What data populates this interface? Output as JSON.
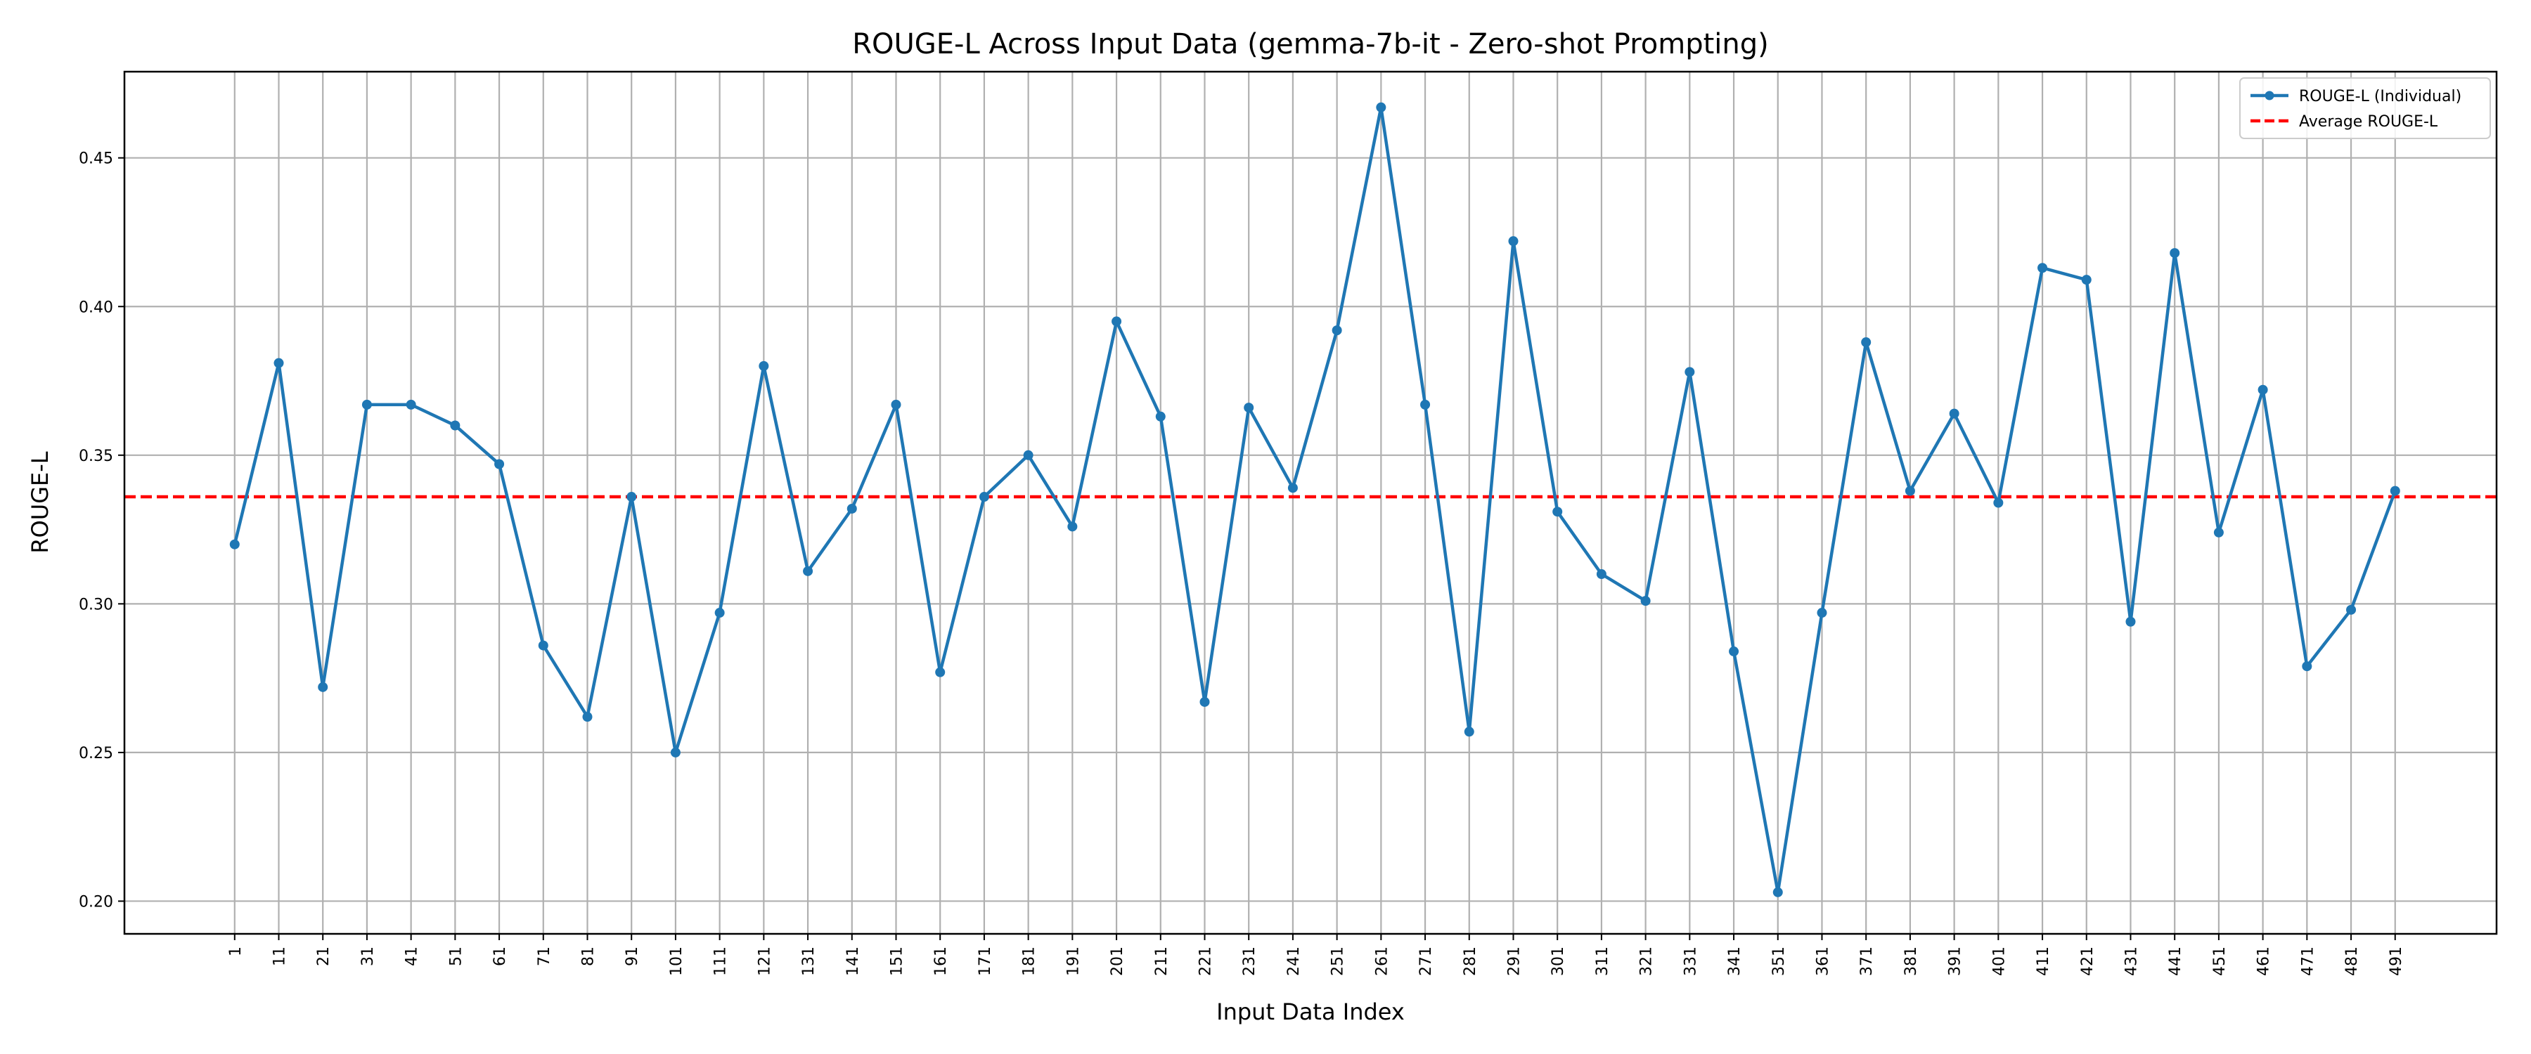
{
  "chart_data": {
    "type": "line",
    "title": "ROUGE-L Across Input Data (gemma-7b-it - Zero-shot Prompting)",
    "xlabel": "Input Data Index",
    "ylabel": "ROUGE-L",
    "x": [
      1,
      11,
      21,
      31,
      41,
      51,
      61,
      71,
      81,
      91,
      101,
      111,
      121,
      131,
      141,
      151,
      161,
      171,
      181,
      191,
      201,
      211,
      221,
      231,
      241,
      251,
      261,
      271,
      281,
      291,
      301,
      311,
      321,
      331,
      341,
      351,
      361,
      371,
      381,
      391,
      401,
      411,
      421,
      431,
      441,
      451,
      461,
      471,
      481,
      491
    ],
    "xtick_labels": [
      "1",
      "11",
      "21",
      "31",
      "41",
      "51",
      "61",
      "71",
      "81",
      "91",
      "101",
      "111",
      "121",
      "131",
      "141",
      "151",
      "161",
      "171",
      "181",
      "191",
      "201",
      "211",
      "221",
      "231",
      "241",
      "251",
      "261",
      "271",
      "281",
      "291",
      "301",
      "311",
      "321",
      "331",
      "341",
      "351",
      "361",
      "371",
      "381",
      "391",
      "401",
      "411",
      "421",
      "431",
      "441",
      "451",
      "461",
      "471",
      "481",
      "491"
    ],
    "xlim": [
      -24,
      514
    ],
    "ylim": [
      0.189,
      0.479
    ],
    "yticks": [
      0.2,
      0.25,
      0.3,
      0.35,
      0.4,
      0.45
    ],
    "ytick_labels": [
      "0.20",
      "0.25",
      "0.30",
      "0.35",
      "0.40",
      "0.45"
    ],
    "grid": true,
    "legend_position": "top-right",
    "series": [
      {
        "name": "ROUGE-L (Individual)",
        "color": "#1f77b4",
        "style": "solid-line-with-markers",
        "values": [
          0.32,
          0.381,
          0.272,
          0.367,
          0.367,
          0.36,
          0.347,
          0.286,
          0.262,
          0.336,
          0.25,
          0.297,
          0.38,
          0.311,
          0.332,
          0.367,
          0.277,
          0.336,
          0.35,
          0.326,
          0.395,
          0.363,
          0.267,
          0.366,
          0.339,
          0.392,
          0.467,
          0.367,
          0.257,
          0.422,
          0.331,
          0.31,
          0.301,
          0.378,
          0.284,
          0.203,
          0.297,
          0.388,
          0.338,
          0.364,
          0.334,
          0.413,
          0.409,
          0.294,
          0.418,
          0.324,
          0.372,
          0.279,
          0.298,
          0.338
        ]
      },
      {
        "name": "Average ROUGE-L",
        "color": "#ff0000",
        "style": "dashed-horizontal-line",
        "value": 0.336
      }
    ]
  }
}
